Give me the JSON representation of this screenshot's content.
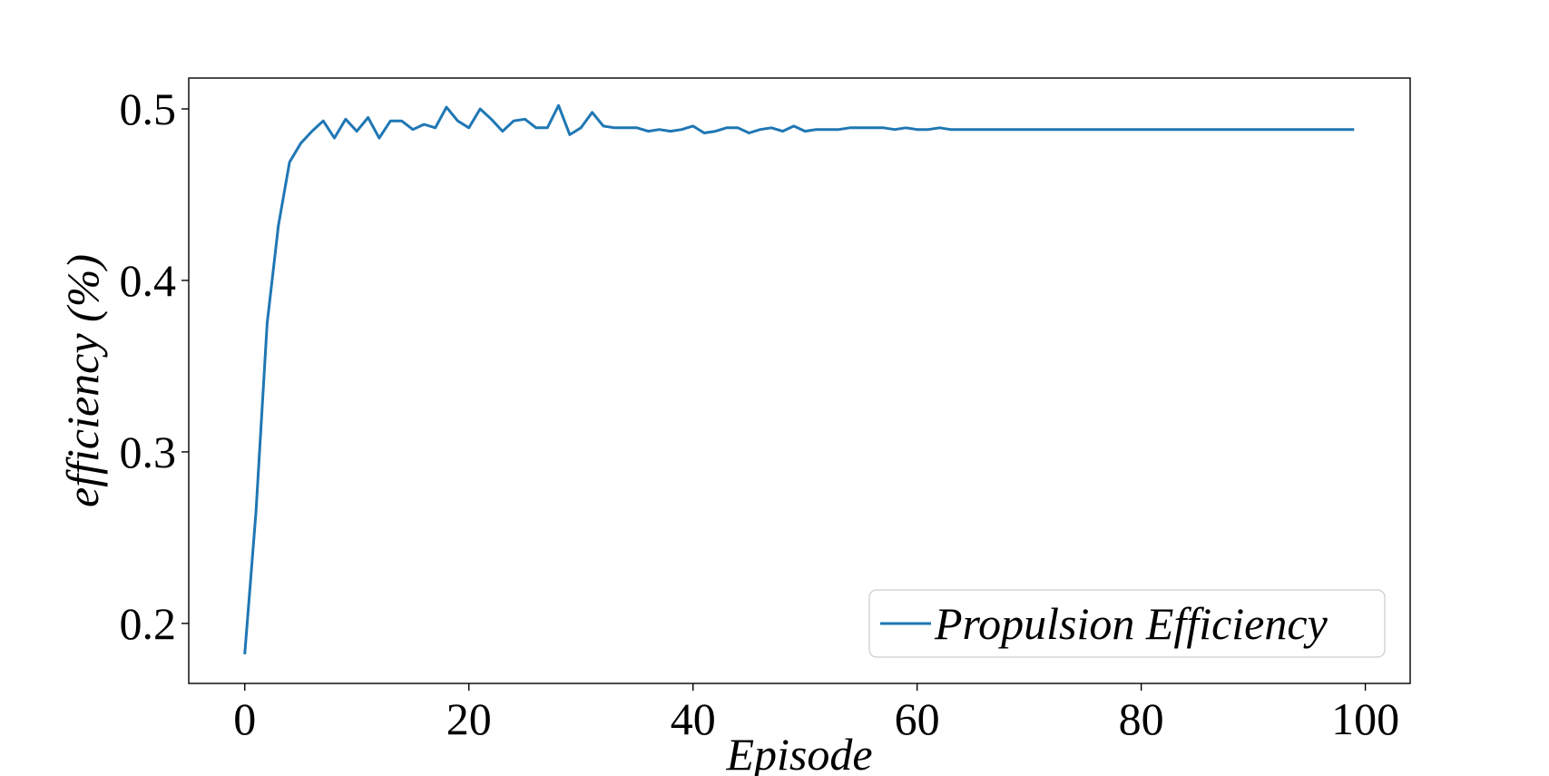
{
  "chart_data": {
    "type": "line",
    "xlabel": "Episode",
    "ylabel": "efficiency (%)",
    "xlim": [
      -5,
      104
    ],
    "ylim": [
      0.165,
      0.518
    ],
    "xticks": [
      0,
      20,
      40,
      60,
      80,
      100
    ],
    "xtick_labels": [
      "0",
      "20",
      "40",
      "60",
      "80",
      "100"
    ],
    "yticks": [
      0.2,
      0.3,
      0.4,
      0.5
    ],
    "ytick_labels": [
      "0.2",
      "0.3",
      "0.4",
      "0.5"
    ],
    "grid": false,
    "legend_position": "lower-right",
    "series": [
      {
        "name": "Propulsion Efficiency",
        "color": "#1f77b4",
        "x": [
          0,
          1,
          2,
          3,
          4,
          5,
          6,
          7,
          8,
          9,
          10,
          11,
          12,
          13,
          14,
          15,
          16,
          17,
          18,
          19,
          20,
          21,
          22,
          23,
          24,
          25,
          26,
          27,
          28,
          29,
          30,
          31,
          32,
          33,
          34,
          35,
          36,
          37,
          38,
          39,
          40,
          41,
          42,
          43,
          44,
          45,
          46,
          47,
          48,
          49,
          50,
          51,
          52,
          53,
          54,
          55,
          56,
          57,
          58,
          59,
          60,
          61,
          62,
          63,
          64,
          65,
          66,
          67,
          68,
          69,
          70,
          71,
          72,
          73,
          74,
          75,
          76,
          77,
          78,
          79,
          80,
          81,
          82,
          83,
          84,
          85,
          86,
          87,
          88,
          89,
          90,
          91,
          92,
          93,
          94,
          95,
          96,
          97,
          98,
          99
        ],
        "values": [
          0.182,
          0.265,
          0.375,
          0.432,
          0.469,
          0.48,
          0.487,
          0.493,
          0.483,
          0.494,
          0.487,
          0.495,
          0.483,
          0.493,
          0.493,
          0.488,
          0.491,
          0.489,
          0.501,
          0.493,
          0.489,
          0.5,
          0.494,
          0.487,
          0.493,
          0.494,
          0.489,
          0.489,
          0.502,
          0.485,
          0.489,
          0.498,
          0.49,
          0.489,
          0.489,
          0.489,
          0.487,
          0.488,
          0.487,
          0.488,
          0.49,
          0.486,
          0.487,
          0.489,
          0.489,
          0.486,
          0.488,
          0.489,
          0.487,
          0.49,
          0.487,
          0.488,
          0.488,
          0.488,
          0.489,
          0.489,
          0.489,
          0.489,
          0.488,
          0.489,
          0.488,
          0.488,
          0.489,
          0.488,
          0.488,
          0.488,
          0.488,
          0.488,
          0.488,
          0.488,
          0.488,
          0.488,
          0.488,
          0.488,
          0.488,
          0.488,
          0.488,
          0.488,
          0.488,
          0.488,
          0.488,
          0.488,
          0.488,
          0.488,
          0.488,
          0.488,
          0.488,
          0.488,
          0.488,
          0.488,
          0.488,
          0.488,
          0.488,
          0.488,
          0.488,
          0.488,
          0.488,
          0.488,
          0.488,
          0.488
        ]
      }
    ]
  }
}
